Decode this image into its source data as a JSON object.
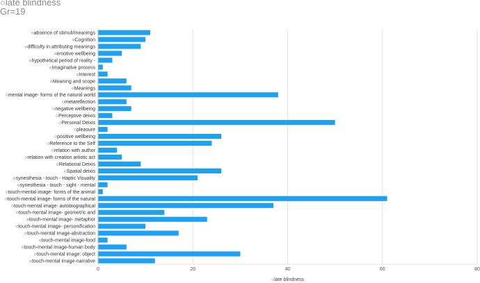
{
  "header": {
    "title": "○late blindness",
    "subtitle": "Gr=19"
  },
  "chart_data": {
    "type": "bar",
    "orientation": "horizontal",
    "title": "○late blindness",
    "subtitle": "Gr=19",
    "xlabel": "○late blindness",
    "ylabel": "",
    "xlim": [
      0,
      80
    ],
    "xticks": [
      0,
      20,
      40,
      60,
      80
    ],
    "grid": true,
    "bar_color": "#1ea1f2",
    "categories": [
      "○absence of stimuli/meanings",
      "○Cognition",
      "○difficulty in attributing meanings",
      "○emotive wellbeing",
      "○hypothetical period of reality -",
      "○Imaginative process",
      "○Interest",
      "○Meaning and scope",
      "○Meanings",
      "○mental image-  forms of the natural world",
      "○metareflection",
      "○negative wellbeing",
      "○Perceptive deixis",
      "○Personal Deixis",
      "○pleasure",
      "○positive wellbeing",
      "○Reference to the Self",
      "○relation with author",
      "○relation with creation artistic act",
      "○Relational Deixis",
      "○Spatial deixis",
      "○synesthesia - touch - Haptic Visuality",
      "○synesthesia - touch - sight - mental",
      "○touch-mental image-  forms of the animal",
      "○touch-mental image-  forms of the natural",
      "○touch-mental image- autobiographical",
      "○touch-mental image- geometric and",
      "○touch-mental image- metaphor",
      "○touch-mental image- personification",
      "○touch-mental image-abstraction",
      "○touch-mental image-food",
      "○touch-mental image-human body",
      "○touch-mental image: object",
      "○touch-mental image-narrative"
    ],
    "values": [
      11,
      10,
      9,
      5,
      3,
      1,
      2,
      6,
      7,
      38,
      6,
      7,
      3,
      50,
      2,
      26,
      24,
      4,
      5,
      9,
      26,
      21,
      2,
      1,
      61,
      37,
      14,
      23,
      10,
      17,
      2,
      6,
      30,
      12
    ]
  }
}
